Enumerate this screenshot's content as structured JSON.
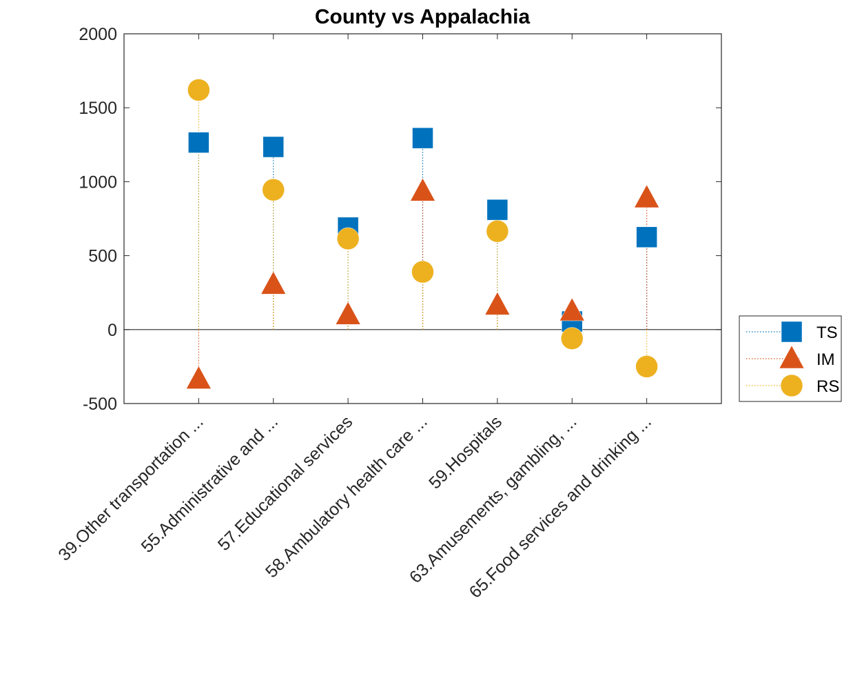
{
  "chart_data": {
    "type": "scatter",
    "title": "County vs Appalachia",
    "xlabel": "",
    "ylabel": "",
    "categories": [
      "39.Other transportation ...",
      "55.Administrative and ...",
      "57.Educational services",
      "58.Ambulatory health care ...",
      "59.Hospitals",
      "63.Amusements, gambling, ...",
      "65.Food services and drinking ..."
    ],
    "ylim": [
      -500,
      2000
    ],
    "yticks": [
      -500,
      0,
      500,
      1000,
      1500,
      2000
    ],
    "grid": false,
    "legend_position": "right",
    "series": [
      {
        "name": "TS",
        "marker": "square",
        "color": "#0072BD",
        "values": [
          1265,
          1235,
          690,
          1295,
          810,
          55,
          625
        ]
      },
      {
        "name": "IM",
        "marker": "triangle",
        "color": "#D95319",
        "values": [
          -335,
          305,
          100,
          935,
          165,
          125,
          890
        ]
      },
      {
        "name": "RS",
        "marker": "circle",
        "color": "#EDB120",
        "values": [
          1620,
          945,
          615,
          390,
          665,
          -60,
          -250
        ]
      }
    ]
  }
}
